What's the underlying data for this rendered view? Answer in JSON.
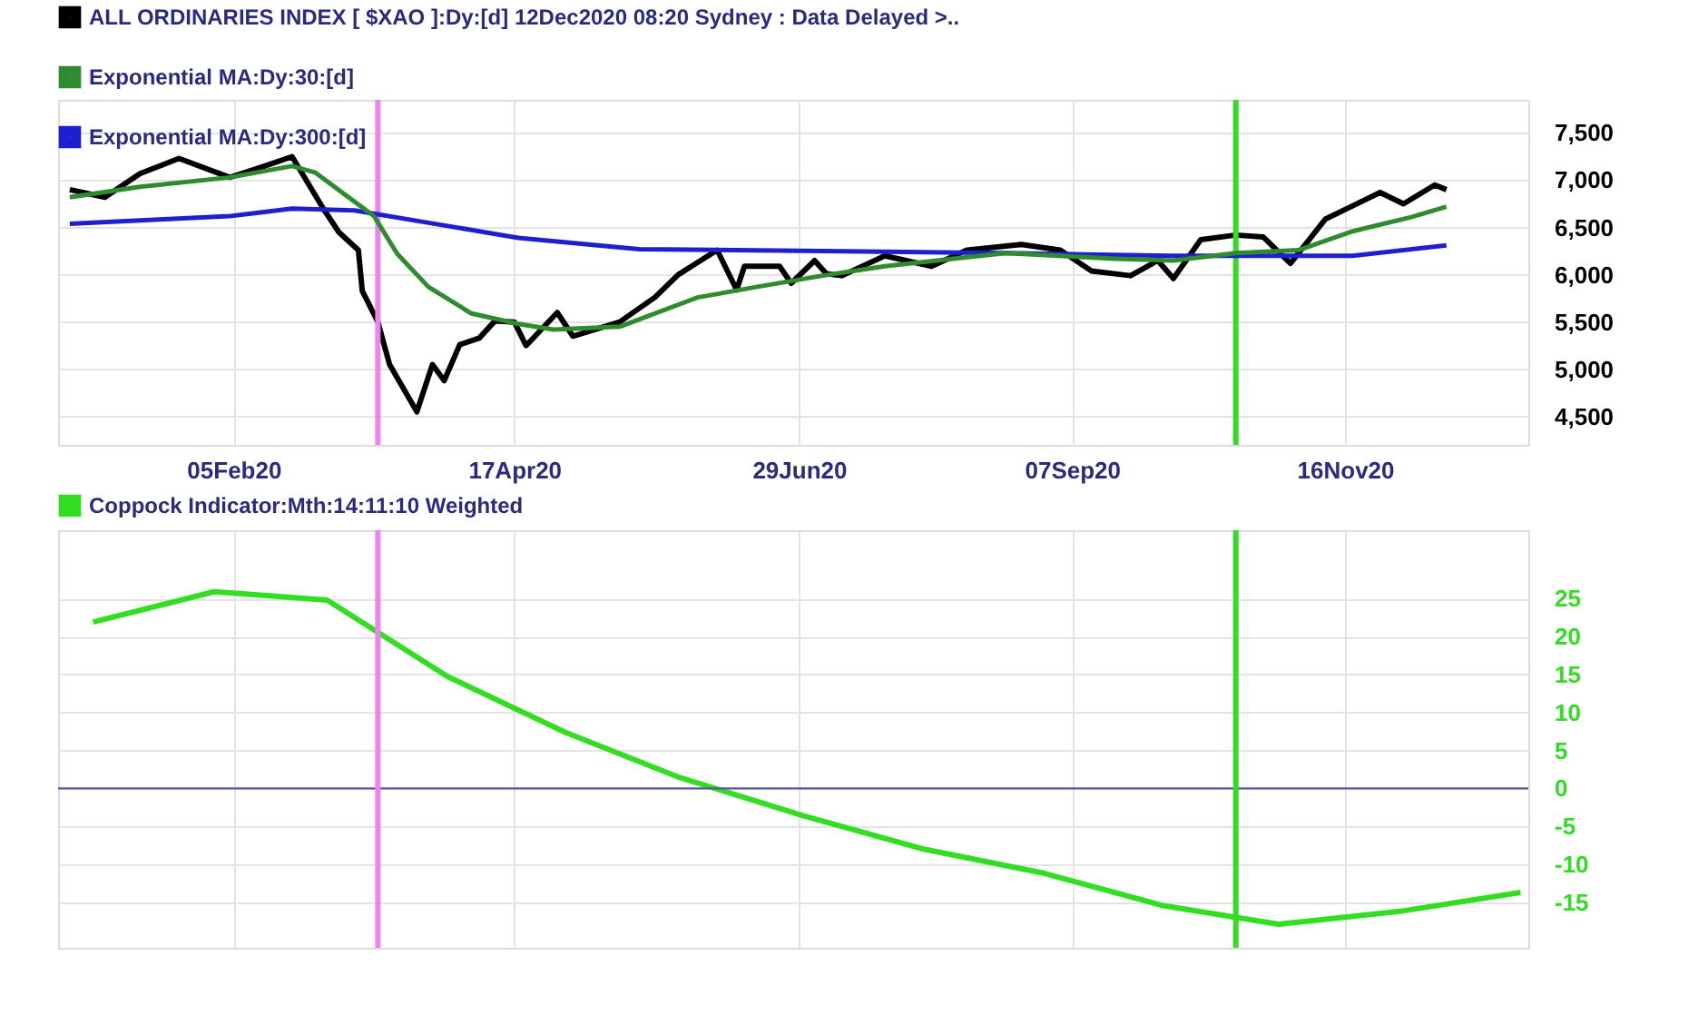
{
  "chart_data": [
    {
      "type": "line",
      "legend": "top left",
      "grid": true,
      "marker": "none",
      "line_style": "solid",
      "xlim": [
        "2019-12-22",
        "2021-01-02"
      ],
      "xticks": [
        {
          "value": "2020-02-05",
          "label": "05Feb20"
        },
        {
          "value": "2020-04-17",
          "label": "17Apr20"
        },
        {
          "value": "2020-06-29",
          "label": "29Jun20"
        },
        {
          "value": "2020-09-07",
          "label": "07Sep20"
        },
        {
          "value": "2020-11-16",
          "label": "16Nov20"
        }
      ],
      "ylim": [
        4200,
        7850
      ],
      "yticks": [
        {
          "value": 4500,
          "label": "4,500"
        },
        {
          "value": 5000,
          "label": "5,000"
        },
        {
          "value": 5500,
          "label": "5,500"
        },
        {
          "value": 6000,
          "label": "6,000"
        },
        {
          "value": 6500,
          "label": "6,500"
        },
        {
          "value": 7000,
          "label": "7,000"
        },
        {
          "value": 7500,
          "label": "7,500"
        }
      ],
      "ref_lines": [
        {
          "axis": "x",
          "value": "2020-03-13",
          "color": "#ee82ee"
        },
        {
          "axis": "x",
          "value": "2020-10-19",
          "color": "#33dd22"
        }
      ],
      "series": [
        {
          "name": "ALL ORDINARIES INDEX [ $XAO ]:Dy:[d]  12Dec2020 08:20 Sydney : Data Delayed >..",
          "color": "#000000",
          "x": [
            "2019-12-25",
            "2020-01-03",
            "2020-01-12",
            "2020-01-22",
            "2020-02-04",
            "2020-02-13",
            "2020-02-20",
            "2020-02-28",
            "2020-03-03",
            "2020-03-08",
            "2020-03-09",
            "2020-03-13",
            "2020-03-16",
            "2020-03-23",
            "2020-03-27",
            "2020-03-30",
            "2020-04-03",
            "2020-04-08",
            "2020-04-12",
            "2020-04-17",
            "2020-04-20",
            "2020-04-28",
            "2020-05-02",
            "2020-05-14",
            "2020-05-23",
            "2020-05-29",
            "2020-06-08",
            "2020-06-13",
            "2020-06-15",
            "2020-06-24",
            "2020-06-27",
            "2020-07-03",
            "2020-07-06",
            "2020-07-10",
            "2020-07-21",
            "2020-08-02",
            "2020-08-11",
            "2020-08-25",
            "2020-09-04",
            "2020-09-12",
            "2020-09-22",
            "2020-09-29",
            "2020-10-03",
            "2020-10-10",
            "2020-10-19",
            "2020-10-26",
            "2020-11-02",
            "2020-11-11",
            "2020-11-18",
            "2020-11-25",
            "2020-12-01",
            "2020-12-09",
            "2020-12-12"
          ],
          "values": [
            6900,
            6820,
            7070,
            7230,
            7030,
            7150,
            7250,
            6700,
            6450,
            6260,
            5830,
            5500,
            5050,
            4550,
            5050,
            4880,
            5260,
            5330,
            5510,
            5500,
            5250,
            5600,
            5350,
            5500,
            5760,
            6000,
            6260,
            5840,
            6090,
            6090,
            5910,
            6150,
            6010,
            5990,
            6200,
            6090,
            6260,
            6320,
            6260,
            6040,
            5990,
            6150,
            5960,
            6370,
            6420,
            6400,
            6120,
            6590,
            6730,
            6870,
            6750,
            6950,
            6900
          ]
        },
        {
          "name": "Exponential MA:Dy:30:[d]",
          "color": "#2e8b2e",
          "x": [
            "2019-12-25",
            "2020-01-12",
            "2020-02-04",
            "2020-02-20",
            "2020-02-26",
            "2020-03-12",
            "2020-03-18",
            "2020-03-26",
            "2020-04-06",
            "2020-04-18",
            "2020-04-27",
            "2020-05-14",
            "2020-06-03",
            "2020-06-18",
            "2020-07-05",
            "2020-07-21",
            "2020-08-21",
            "2020-09-18",
            "2020-10-03",
            "2020-10-19",
            "2020-11-04",
            "2020-11-18",
            "2020-12-03",
            "2020-12-12"
          ],
          "values": [
            6820,
            6930,
            7030,
            7150,
            7080,
            6620,
            6220,
            5870,
            5590,
            5480,
            5420,
            5450,
            5760,
            5870,
            5990,
            6090,
            6230,
            6170,
            6150,
            6230,
            6260,
            6460,
            6610,
            6720
          ]
        },
        {
          "name": "Exponential MA:Dy:300:[d]",
          "color": "#1f1fd0",
          "x": [
            "2019-12-25",
            "2020-02-04",
            "2020-02-20",
            "2020-03-07",
            "2020-03-26",
            "2020-04-18",
            "2020-05-19",
            "2020-07-05",
            "2020-08-21",
            "2020-10-03",
            "2020-11-18",
            "2020-12-12"
          ],
          "values": [
            6540,
            6620,
            6700,
            6680,
            6550,
            6390,
            6270,
            6250,
            6230,
            6200,
            6200,
            6310
          ]
        }
      ]
    },
    {
      "type": "line",
      "legend": "top left",
      "grid": true,
      "marker": "none",
      "line_style": "solid",
      "tick_labels": "y",
      "xlim": [
        "2019-12-22",
        "2021-01-02"
      ],
      "xticks": [
        {
          "value": "2020-02-05",
          "label": null
        },
        {
          "value": "2020-04-17",
          "label": null
        },
        {
          "value": "2020-06-29",
          "label": null
        },
        {
          "value": "2020-09-07",
          "label": null
        },
        {
          "value": "2020-11-16",
          "label": null
        }
      ],
      "ylim": [
        -21,
        34
      ],
      "yticks": [
        -15,
        -10,
        -5,
        0,
        5,
        10,
        15,
        20,
        25
      ],
      "ref_lines": [
        {
          "axis": "y",
          "value": 0,
          "color": "#5a5aa0"
        },
        {
          "axis": "x",
          "value": "2020-03-13",
          "color": "#ee82ee"
        },
        {
          "axis": "x",
          "value": "2020-10-19",
          "color": "#33dd22"
        }
      ],
      "series": [
        {
          "name": "Coppock Indicator:Mth:14:11:10 Weighted",
          "color": "#33dd22",
          "x": [
            "2019-12-31",
            "2020-01-31",
            "2020-02-29",
            "2020-03-31",
            "2020-04-30",
            "2020-05-29",
            "2020-06-30",
            "2020-07-31",
            "2020-08-31",
            "2020-09-30",
            "2020-10-30",
            "2020-11-30",
            "2020-12-31"
          ],
          "values": [
            21.9,
            25.9,
            24.8,
            14.7,
            7.4,
            1.5,
            -3.6,
            -8.0,
            -11.2,
            -15.4,
            -17.9,
            -16.2,
            -13.7
          ]
        }
      ]
    }
  ]
}
